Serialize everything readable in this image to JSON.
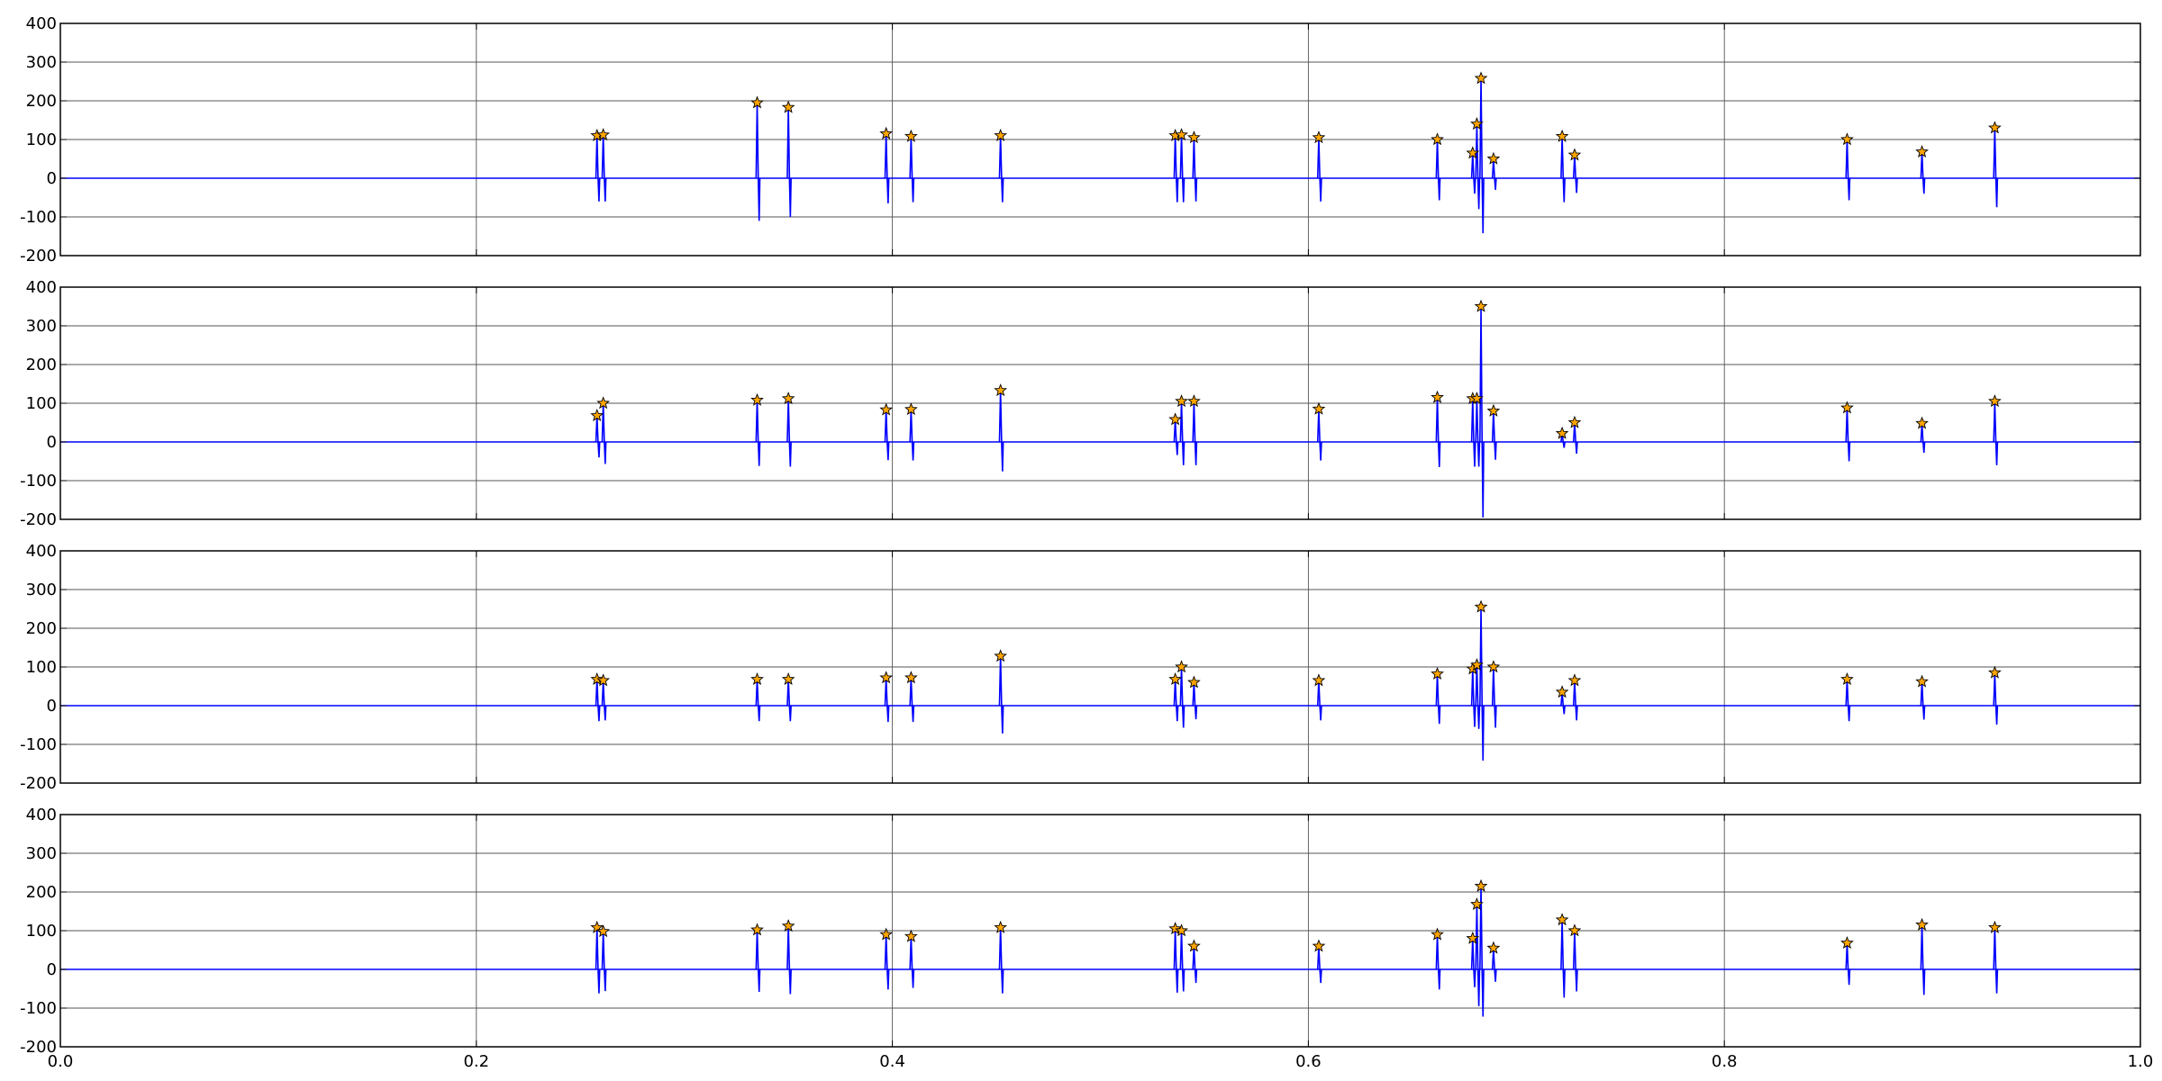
{
  "chart_data": [
    {
      "type": "line",
      "xlim": [
        0,
        1
      ],
      "ylim": [
        -200,
        400
      ],
      "xticks": [],
      "yticks": [
        "400",
        "300",
        "200",
        "100",
        "0",
        "-100",
        "-200"
      ],
      "grid": true,
      "baseline_color": "#0000ff",
      "marker_color": "#ffa500",
      "peaks": [
        {
          "x": 0.258,
          "max": 110,
          "min": -60
        },
        {
          "x": 0.261,
          "max": 112,
          "min": -60
        },
        {
          "x": 0.335,
          "max": 195,
          "min": -110
        },
        {
          "x": 0.35,
          "max": 183,
          "min": -100
        },
        {
          "x": 0.397,
          "max": 115,
          "min": -65
        },
        {
          "x": 0.409,
          "max": 108,
          "min": -62
        },
        {
          "x": 0.452,
          "max": 110,
          "min": -62
        },
        {
          "x": 0.536,
          "max": 110,
          "min": -62
        },
        {
          "x": 0.539,
          "max": 112,
          "min": -62
        },
        {
          "x": 0.545,
          "max": 105,
          "min": -60
        },
        {
          "x": 0.605,
          "max": 105,
          "min": -60
        },
        {
          "x": 0.662,
          "max": 100,
          "min": -57
        },
        {
          "x": 0.679,
          "max": 65,
          "min": -40
        },
        {
          "x": 0.681,
          "max": 140,
          "min": -80
        },
        {
          "x": 0.683,
          "max": 258,
          "min": -142
        },
        {
          "x": 0.689,
          "max": 50,
          "min": -30
        },
        {
          "x": 0.722,
          "max": 108,
          "min": -62
        },
        {
          "x": 0.728,
          "max": 60,
          "min": -38
        },
        {
          "x": 0.859,
          "max": 100,
          "min": -57
        },
        {
          "x": 0.895,
          "max": 68,
          "min": -40
        },
        {
          "x": 0.93,
          "max": 130,
          "min": -75
        }
      ]
    },
    {
      "type": "line",
      "xlim": [
        0,
        1
      ],
      "ylim": [
        -200,
        400
      ],
      "xticks": [],
      "yticks": [
        "400",
        "300",
        "200",
        "100",
        "0",
        "-100",
        "-200"
      ],
      "grid": true,
      "baseline_color": "#0000ff",
      "marker_color": "#ffa500",
      "peaks": [
        {
          "x": 0.258,
          "max": 68,
          "min": -40
        },
        {
          "x": 0.261,
          "max": 100,
          "min": -57
        },
        {
          "x": 0.335,
          "max": 108,
          "min": -62
        },
        {
          "x": 0.35,
          "max": 112,
          "min": -64
        },
        {
          "x": 0.397,
          "max": 83,
          "min": -47
        },
        {
          "x": 0.409,
          "max": 84,
          "min": -48
        },
        {
          "x": 0.452,
          "max": 133,
          "min": -76
        },
        {
          "x": 0.536,
          "max": 58,
          "min": -34
        },
        {
          "x": 0.539,
          "max": 105,
          "min": -60
        },
        {
          "x": 0.545,
          "max": 105,
          "min": -60
        },
        {
          "x": 0.605,
          "max": 85,
          "min": -48
        },
        {
          "x": 0.662,
          "max": 115,
          "min": -65
        },
        {
          "x": 0.679,
          "max": 112,
          "min": -64
        },
        {
          "x": 0.681,
          "max": 112,
          "min": -64
        },
        {
          "x": 0.683,
          "max": 350,
          "min": -195
        },
        {
          "x": 0.689,
          "max": 80,
          "min": -46
        },
        {
          "x": 0.722,
          "max": 22,
          "min": -15
        },
        {
          "x": 0.728,
          "max": 50,
          "min": -30
        },
        {
          "x": 0.859,
          "max": 88,
          "min": -50
        },
        {
          "x": 0.895,
          "max": 48,
          "min": -28
        },
        {
          "x": 0.93,
          "max": 105,
          "min": -60
        }
      ]
    },
    {
      "type": "line",
      "xlim": [
        0,
        1
      ],
      "ylim": [
        -200,
        400
      ],
      "xticks": [],
      "yticks": [
        "400",
        "300",
        "200",
        "100",
        "0",
        "-100",
        "-200"
      ],
      "grid": true,
      "baseline_color": "#0000ff",
      "marker_color": "#ffa500",
      "peaks": [
        {
          "x": 0.258,
          "max": 68,
          "min": -40
        },
        {
          "x": 0.261,
          "max": 65,
          "min": -38
        },
        {
          "x": 0.335,
          "max": 68,
          "min": -40
        },
        {
          "x": 0.35,
          "max": 68,
          "min": -40
        },
        {
          "x": 0.397,
          "max": 72,
          "min": -42
        },
        {
          "x": 0.409,
          "max": 72,
          "min": -42
        },
        {
          "x": 0.452,
          "max": 128,
          "min": -72
        },
        {
          "x": 0.536,
          "max": 68,
          "min": -40
        },
        {
          "x": 0.539,
          "max": 100,
          "min": -57
        },
        {
          "x": 0.545,
          "max": 60,
          "min": -35
        },
        {
          "x": 0.605,
          "max": 65,
          "min": -38
        },
        {
          "x": 0.662,
          "max": 82,
          "min": -47
        },
        {
          "x": 0.679,
          "max": 95,
          "min": -55
        },
        {
          "x": 0.681,
          "max": 105,
          "min": -60
        },
        {
          "x": 0.683,
          "max": 255,
          "min": -142
        },
        {
          "x": 0.689,
          "max": 100,
          "min": -57
        },
        {
          "x": 0.722,
          "max": 35,
          "min": -22
        },
        {
          "x": 0.728,
          "max": 65,
          "min": -38
        },
        {
          "x": 0.859,
          "max": 68,
          "min": -40
        },
        {
          "x": 0.895,
          "max": 62,
          "min": -36
        },
        {
          "x": 0.93,
          "max": 85,
          "min": -49
        }
      ]
    },
    {
      "type": "line",
      "xlim": [
        0,
        1
      ],
      "ylim": [
        -200,
        400
      ],
      "xticks": [
        "0.0",
        "0.2",
        "0.4",
        "0.6",
        "0.8",
        "1.0"
      ],
      "yticks": [
        "400",
        "300",
        "200",
        "100",
        "0",
        "-100",
        "-200"
      ],
      "grid": true,
      "baseline_color": "#0000ff",
      "marker_color": "#ffa500",
      "peaks": [
        {
          "x": 0.258,
          "max": 108,
          "min": -62
        },
        {
          "x": 0.261,
          "max": 98,
          "min": -56
        },
        {
          "x": 0.335,
          "max": 102,
          "min": -58
        },
        {
          "x": 0.35,
          "max": 112,
          "min": -64
        },
        {
          "x": 0.397,
          "max": 90,
          "min": -52
        },
        {
          "x": 0.409,
          "max": 85,
          "min": -48
        },
        {
          "x": 0.452,
          "max": 108,
          "min": -62
        },
        {
          "x": 0.536,
          "max": 105,
          "min": -60
        },
        {
          "x": 0.539,
          "max": 100,
          "min": -57
        },
        {
          "x": 0.545,
          "max": 60,
          "min": -35
        },
        {
          "x": 0.605,
          "max": 60,
          "min": -35
        },
        {
          "x": 0.662,
          "max": 90,
          "min": -52
        },
        {
          "x": 0.679,
          "max": 80,
          "min": -46
        },
        {
          "x": 0.681,
          "max": 168,
          "min": -95
        },
        {
          "x": 0.683,
          "max": 215,
          "min": -122
        },
        {
          "x": 0.689,
          "max": 55,
          "min": -32
        },
        {
          "x": 0.722,
          "max": 128,
          "min": -73
        },
        {
          "x": 0.728,
          "max": 100,
          "min": -57
        },
        {
          "x": 0.859,
          "max": 68,
          "min": -40
        },
        {
          "x": 0.895,
          "max": 115,
          "min": -66
        },
        {
          "x": 0.93,
          "max": 108,
          "min": -62
        }
      ]
    }
  ]
}
